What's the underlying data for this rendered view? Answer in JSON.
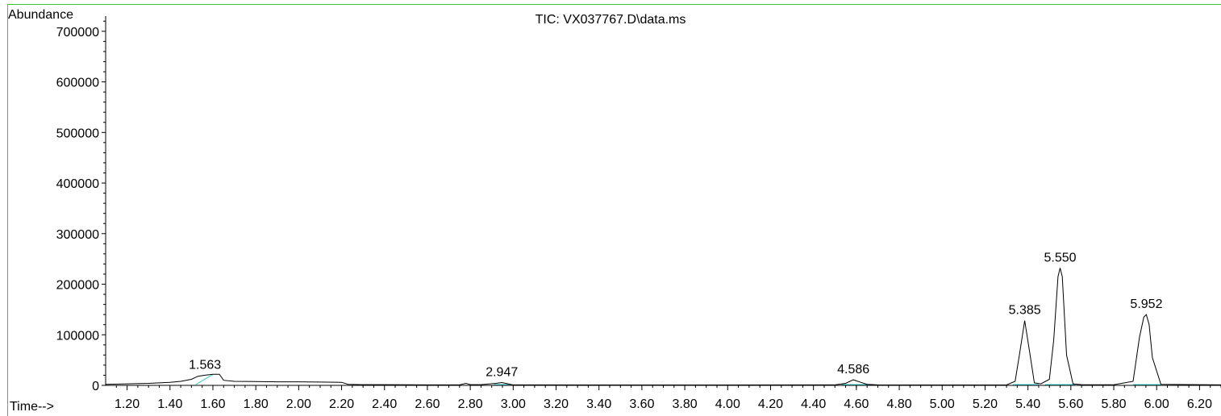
{
  "chart_data": {
    "type": "line",
    "title": "TIC: VX037767.D\\data.ms",
    "xlabel": "Time-->",
    "ylabel": "Abundance",
    "xlim": [
      1.1,
      6.3
    ],
    "ylim": [
      0,
      730000
    ],
    "xticks": [
      "1.20",
      "1.40",
      "1.60",
      "1.80",
      "2.00",
      "2.20",
      "2.40",
      "2.60",
      "2.80",
      "3.00",
      "3.20",
      "3.40",
      "3.60",
      "3.80",
      "4.00",
      "4.20",
      "4.40",
      "4.60",
      "4.80",
      "5.00",
      "5.20",
      "5.40",
      "5.60",
      "5.80",
      "6.00",
      "6.20"
    ],
    "yticks": [
      "0",
      "100000",
      "200000",
      "300000",
      "400000",
      "500000",
      "600000",
      "700000"
    ],
    "series": [
      {
        "x": [
          1.1,
          1.2,
          1.3,
          1.4,
          1.45,
          1.5,
          1.53,
          1.56,
          1.6,
          1.63,
          1.65,
          1.7,
          1.8,
          1.9,
          2.0,
          2.1,
          2.2,
          2.23,
          2.3,
          2.4,
          2.6,
          2.75,
          2.78,
          2.8,
          2.85,
          2.92,
          2.947,
          2.97,
          3.0,
          3.1,
          3.5,
          4.0,
          4.5,
          4.55,
          4.586,
          4.62,
          4.65,
          4.7,
          5.0,
          5.3,
          5.34,
          5.36,
          5.385,
          5.41,
          5.43,
          5.46,
          5.5,
          5.52,
          5.54,
          5.55,
          5.56,
          5.58,
          5.61,
          5.65,
          5.8,
          5.89,
          5.92,
          5.94,
          5.952,
          5.965,
          5.98,
          6.02,
          6.3
        ],
        "y": [
          2000,
          3000,
          4000,
          6000,
          8000,
          12000,
          18000,
          20000,
          22000,
          22000,
          10000,
          8000,
          7500,
          7000,
          7000,
          6500,
          6000,
          2000,
          1500,
          1500,
          1000,
          1000,
          4000,
          1500,
          1500,
          4000,
          5500,
          3500,
          1000,
          1000,
          800,
          800,
          1000,
          4000,
          11000,
          6000,
          2000,
          1000,
          800,
          800,
          8000,
          60000,
          128000,
          60000,
          5000,
          3000,
          12000,
          90000,
          215000,
          232000,
          215000,
          60000,
          3000,
          1500,
          1200,
          8000,
          95000,
          135000,
          140000,
          120000,
          55000,
          2000,
          1000
        ]
      }
    ],
    "annotations": [
      {
        "label": "1.563",
        "x": 1.563,
        "y": 20000
      },
      {
        "label": "2.947",
        "x": 2.947,
        "y": 5500
      },
      {
        "label": "4.586",
        "x": 4.586,
        "y": 11000
      },
      {
        "label": "5.385",
        "x": 5.385,
        "y": 128000
      },
      {
        "label": "5.550",
        "x": 5.55,
        "y": 232000
      },
      {
        "label": "5.952",
        "x": 5.952,
        "y": 140000
      }
    ],
    "integration_baselines": [
      {
        "x": [
          1.52,
          1.6
        ],
        "y": [
          0,
          20000
        ]
      },
      {
        "x": [
          2.91,
          2.99
        ],
        "y": [
          0,
          0
        ]
      },
      {
        "x": [
          4.53,
          4.68
        ],
        "y": [
          0,
          0
        ]
      },
      {
        "x": [
          5.33,
          5.45
        ],
        "y": [
          0,
          0
        ]
      },
      {
        "x": [
          5.48,
          5.62
        ],
        "y": [
          0,
          0
        ]
      },
      {
        "x": [
          5.89,
          6.02
        ],
        "y": [
          0,
          0
        ]
      }
    ],
    "colors": {
      "trace": "#000000",
      "baseline": "#33cccc",
      "frame": "#33cc33"
    },
    "grid": false
  }
}
